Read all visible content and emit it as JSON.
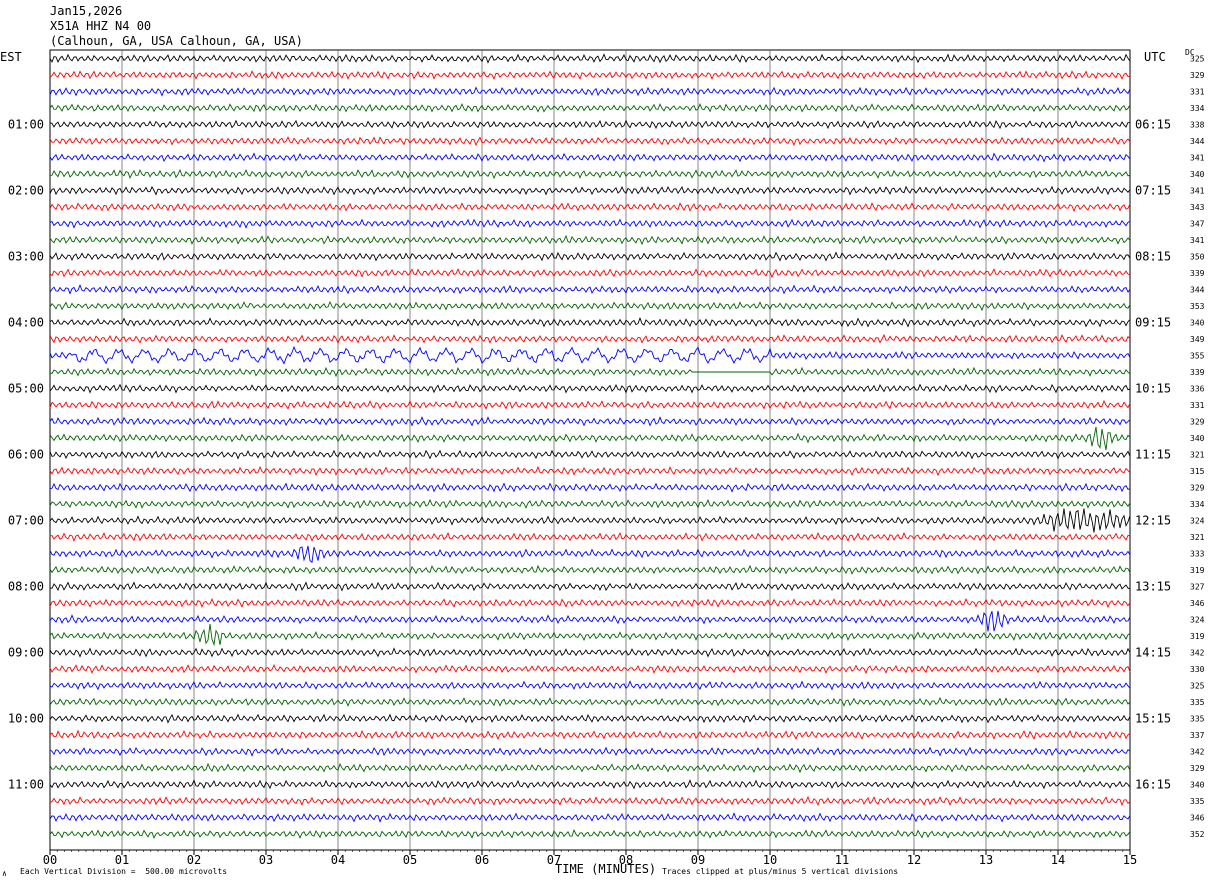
{
  "header": {
    "date": "Jan15,2026",
    "channel": "X51A HHZ N4 00",
    "location": "(Calhoun, GA, USA Calhoun, GA, USA)"
  },
  "tz_left": "EST",
  "tz_right": "UTC",
  "dc_label": "DC",
  "footer": {
    "scale_note": "Each Vertical Division =  500.00 microvolts",
    "clip_note": "Traces clipped at plus/minus 5 vertical divisions",
    "mark": "∧"
  },
  "colors": {
    "black": "#000000",
    "red": "#ff0000",
    "blue": "#0000ff",
    "green": "#006400",
    "grid": "#000000"
  },
  "chart_data": {
    "type": "line",
    "title": "",
    "xlabel": "TIME (MINUTES)",
    "xlim": [
      0,
      15
    ],
    "x_ticks": [
      "00",
      "01",
      "02",
      "03",
      "04",
      "05",
      "06",
      "07",
      "08",
      "09",
      "10",
      "11",
      "12",
      "13",
      "14",
      "15"
    ],
    "rows": 48,
    "row_minutes": 15,
    "trace_color_cycle": [
      "black",
      "red",
      "blue",
      "green"
    ],
    "left_hour_labels": [
      "01:00",
      "02:00",
      "03:00",
      "04:00",
      "05:00",
      "06:00",
      "07:00",
      "08:00",
      "09:00",
      "10:00",
      "11:00"
    ],
    "right_hour_labels": [
      "06:15",
      "07:15",
      "08:15",
      "09:15",
      "10:15",
      "11:15",
      "12:15",
      "13:15",
      "14:15",
      "15:15",
      "16:15"
    ],
    "dc_offsets": [
      325,
      329,
      331,
      334,
      338,
      344,
      341,
      340,
      341,
      343,
      347,
      341,
      350,
      339,
      344,
      353,
      340,
      349,
      355,
      339,
      336,
      331,
      329,
      340,
      321,
      315,
      329,
      334,
      324,
      321,
      333,
      319,
      327,
      346,
      324,
      319,
      342,
      330,
      325,
      335,
      335,
      337,
      342,
      329,
      340,
      335,
      346,
      352
    ],
    "events": [
      {
        "row": 18,
        "x": [
          0.3,
          10.0
        ],
        "kind": "long-period swell"
      },
      {
        "row": 19,
        "x": [
          8.9,
          10.0
        ],
        "kind": "flat gap"
      },
      {
        "row": 23,
        "x": [
          14.6,
          14.6
        ],
        "kind": "burst"
      },
      {
        "row": 28,
        "x": [
          13.8,
          15.0
        ],
        "kind": "burst"
      },
      {
        "row": 30,
        "x": [
          3.6,
          3.6
        ],
        "kind": "burst"
      },
      {
        "row": 34,
        "x": [
          13.1,
          13.1
        ],
        "kind": "burst"
      },
      {
        "row": 35,
        "x": [
          2.2,
          2.2
        ],
        "kind": "burst"
      }
    ]
  }
}
